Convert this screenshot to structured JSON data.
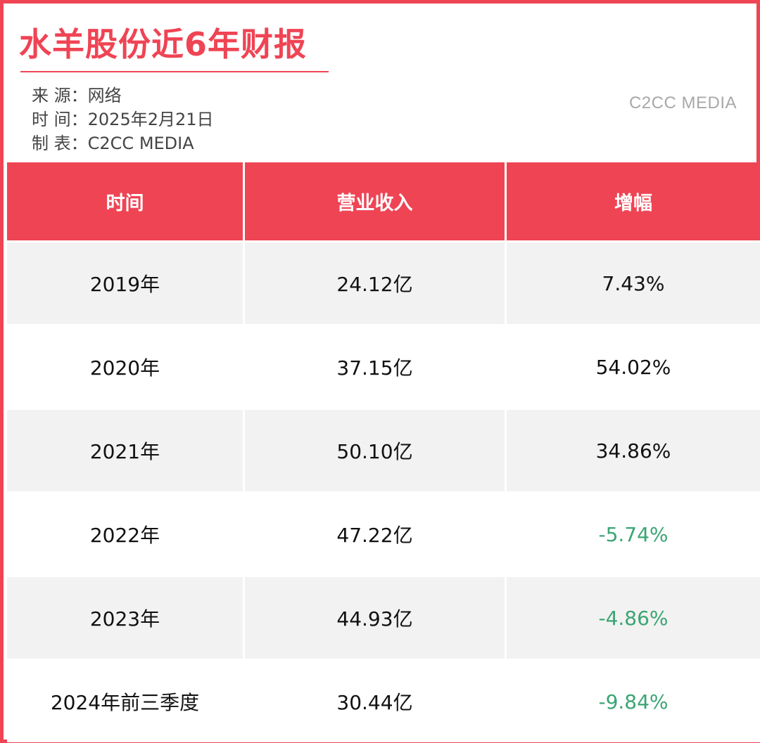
{
  "title": "水羊股份近6年财报",
  "meta": {
    "source_label": "来 源：",
    "source_value": "网络",
    "time_label": "时 间：",
    "time_value": "2025年2月21日",
    "maker_label": "制 表：",
    "maker_value": "C2CC  MEDIA"
  },
  "watermark": "C2CC MEDIA",
  "colors": {
    "accent": "#ef4454",
    "negative": "#3aa573",
    "row_shade": "#f2f2f2"
  },
  "chart_data": {
    "type": "table",
    "title": "水羊股份近6年财报",
    "columns": [
      "时间",
      "营业收入",
      "增幅"
    ],
    "rows": [
      {
        "period": "2019年",
        "revenue": "24.12亿",
        "growth": "7.43%",
        "negative": false
      },
      {
        "period": "2020年",
        "revenue": "37.15亿",
        "growth": "54.02%",
        "negative": false
      },
      {
        "period": "2021年",
        "revenue": "50.10亿",
        "growth": "34.86%",
        "negative": false
      },
      {
        "period": "2022年",
        "revenue": "47.22亿",
        "growth": "-5.74%",
        "negative": true
      },
      {
        "period": "2023年",
        "revenue": "44.93亿",
        "growth": "-4.86%",
        "negative": true
      },
      {
        "period": "2024年前三季度",
        "revenue": "30.44亿",
        "growth": "-9.84%",
        "negative": true
      }
    ]
  }
}
